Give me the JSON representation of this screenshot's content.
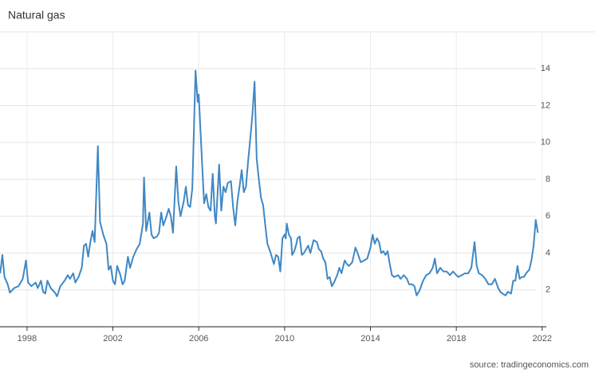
{
  "chart_data": {
    "type": "line",
    "title": "Natural gas",
    "source": "source: tradingeconomics.com",
    "xlim": [
      1996.74,
      2022.38
    ],
    "ylim": [
      0,
      16
    ],
    "xticks": [
      1998,
      2002,
      2006,
      2010,
      2014,
      2018,
      2022
    ],
    "yticks": [
      2,
      4,
      6,
      8,
      10,
      12,
      14
    ],
    "grid": true,
    "series": [
      {
        "name": "Natural gas",
        "color": "#3f88c5",
        "x": [
          1996.75,
          1996.85,
          1996.95,
          1997.1,
          1997.2,
          1997.4,
          1997.6,
          1997.8,
          1997.95,
          1998.05,
          1998.2,
          1998.4,
          1998.5,
          1998.65,
          1998.75,
          1998.85,
          1998.95,
          1999.1,
          1999.3,
          1999.4,
          1999.55,
          1999.75,
          1999.9,
          2000.0,
          2000.15,
          2000.25,
          2000.4,
          2000.55,
          2000.65,
          2000.75,
          2000.85,
          2000.95,
          2001.05,
          2001.15,
          2001.3,
          2001.4,
          2001.55,
          2001.7,
          2001.8,
          2001.9,
          2002.0,
          2002.1,
          2002.2,
          2002.35,
          2002.45,
          2002.55,
          2002.7,
          2002.8,
          2002.95,
          2003.1,
          2003.25,
          2003.4,
          2003.45,
          2003.55,
          2003.7,
          2003.8,
          2003.9,
          2004.05,
          2004.15,
          2004.25,
          2004.35,
          2004.5,
          2004.6,
          2004.7,
          2004.8,
          2004.95,
          2005.05,
          2005.15,
          2005.3,
          2005.4,
          2005.5,
          2005.6,
          2005.7,
          2005.85,
          2005.95,
          2006.0,
          2006.15,
          2006.25,
          2006.35,
          2006.45,
          2006.55,
          2006.65,
          2006.75,
          2006.8,
          2006.95,
          2007.05,
          2007.15,
          2007.25,
          2007.35,
          2007.5,
          2007.6,
          2007.7,
          2007.8,
          2007.9,
          2008.0,
          2008.1,
          2008.2,
          2008.3,
          2008.4,
          2008.5,
          2008.6,
          2008.7,
          2008.8,
          2008.9,
          2009.0,
          2009.1,
          2009.2,
          2009.35,
          2009.5,
          2009.6,
          2009.7,
          2009.8,
          2009.9,
          2010.0,
          2010.05,
          2010.1,
          2010.2,
          2010.3,
          2010.35,
          2010.45,
          2010.55,
          2010.6,
          2010.7,
          2010.8,
          2010.9,
          2011.0,
          2011.1,
          2011.2,
          2011.35,
          2011.5,
          2011.6,
          2011.7,
          2011.8,
          2011.9,
          2012.0,
          2012.1,
          2012.2,
          2012.3,
          2012.45,
          2012.55,
          2012.65,
          2012.8,
          2012.9,
          2013.0,
          2013.15,
          2013.3,
          2013.4,
          2013.55,
          2013.7,
          2013.85,
          2014.0,
          2014.1,
          2014.2,
          2014.3,
          2014.4,
          2014.5,
          2014.6,
          2014.7,
          2014.8,
          2014.9,
          2015.0,
          2015.1,
          2015.3,
          2015.4,
          2015.55,
          2015.7,
          2015.8,
          2015.95,
          2016.05,
          2016.15,
          2016.3,
          2016.45,
          2016.6,
          2016.75,
          2016.9,
          2017.0,
          2017.1,
          2017.25,
          2017.4,
          2017.55,
          2017.7,
          2017.85,
          2018.0,
          2018.1,
          2018.25,
          2018.4,
          2018.55,
          2018.7,
          2018.85,
          2018.95,
          2019.05,
          2019.2,
          2019.35,
          2019.5,
          2019.65,
          2019.8,
          2019.95,
          2020.05,
          2020.15,
          2020.3,
          2020.4,
          2020.55,
          2020.65,
          2020.75,
          2020.85,
          2020.95,
          2021.05,
          2021.15,
          2021.25,
          2021.4,
          2021.5,
          2021.6,
          2021.7,
          2021.8
        ],
        "values": [
          2.9,
          3.9,
          2.7,
          2.3,
          1.85,
          2.1,
          2.2,
          2.6,
          3.6,
          2.4,
          2.2,
          2.4,
          2.1,
          2.5,
          1.9,
          1.8,
          2.5,
          2.1,
          1.85,
          1.65,
          2.2,
          2.5,
          2.8,
          2.6,
          2.9,
          2.4,
          2.7,
          3.2,
          4.4,
          4.5,
          3.8,
          4.6,
          5.2,
          4.6,
          9.8,
          5.7,
          5.0,
          4.5,
          3.1,
          3.3,
          2.5,
          2.3,
          3.3,
          2.8,
          2.3,
          2.5,
          3.8,
          3.2,
          3.8,
          4.2,
          4.5,
          5.6,
          8.1,
          5.2,
          6.2,
          5.0,
          4.8,
          4.9,
          5.1,
          6.2,
          5.5,
          6.0,
          6.4,
          6.0,
          5.1,
          8.7,
          6.8,
          6.0,
          6.8,
          7.6,
          6.6,
          6.5,
          7.5,
          13.9,
          12.2,
          12.6,
          9.0,
          6.7,
          7.2,
          6.5,
          6.3,
          8.3,
          6.0,
          5.6,
          8.8,
          6.3,
          7.6,
          7.3,
          7.8,
          7.9,
          6.5,
          5.5,
          6.8,
          7.6,
          8.5,
          7.3,
          7.6,
          9.0,
          10.2,
          11.5,
          13.3,
          9.1,
          8.0,
          7.0,
          6.6,
          5.5,
          4.5,
          4.0,
          3.4,
          3.9,
          3.8,
          3.0,
          4.8,
          5.0,
          4.8,
          5.6,
          5.0,
          4.8,
          3.9,
          4.1,
          4.5,
          4.8,
          4.9,
          3.9,
          4.0,
          4.2,
          4.4,
          4.0,
          4.7,
          4.6,
          4.2,
          4.1,
          3.7,
          3.5,
          2.6,
          2.7,
          2.2,
          2.4,
          2.8,
          3.2,
          2.9,
          3.6,
          3.4,
          3.3,
          3.5,
          4.3,
          4.0,
          3.5,
          3.6,
          3.7,
          4.3,
          5.0,
          4.5,
          4.8,
          4.6,
          4.0,
          4.1,
          3.9,
          4.1,
          3.4,
          2.8,
          2.7,
          2.8,
          2.6,
          2.8,
          2.6,
          2.3,
          2.3,
          2.2,
          1.7,
          2.0,
          2.5,
          2.8,
          2.9,
          3.2,
          3.7,
          2.9,
          3.2,
          3.0,
          3.0,
          2.8,
          3.0,
          2.8,
          2.7,
          2.8,
          2.9,
          2.9,
          3.2,
          4.6,
          3.3,
          2.9,
          2.8,
          2.6,
          2.3,
          2.3,
          2.6,
          2.1,
          1.9,
          1.8,
          1.7,
          1.9,
          1.8,
          2.5,
          2.5,
          3.3,
          2.6,
          2.7,
          2.7,
          2.9,
          3.1,
          3.6,
          4.4,
          5.8,
          5.1
        ]
      }
    ]
  }
}
